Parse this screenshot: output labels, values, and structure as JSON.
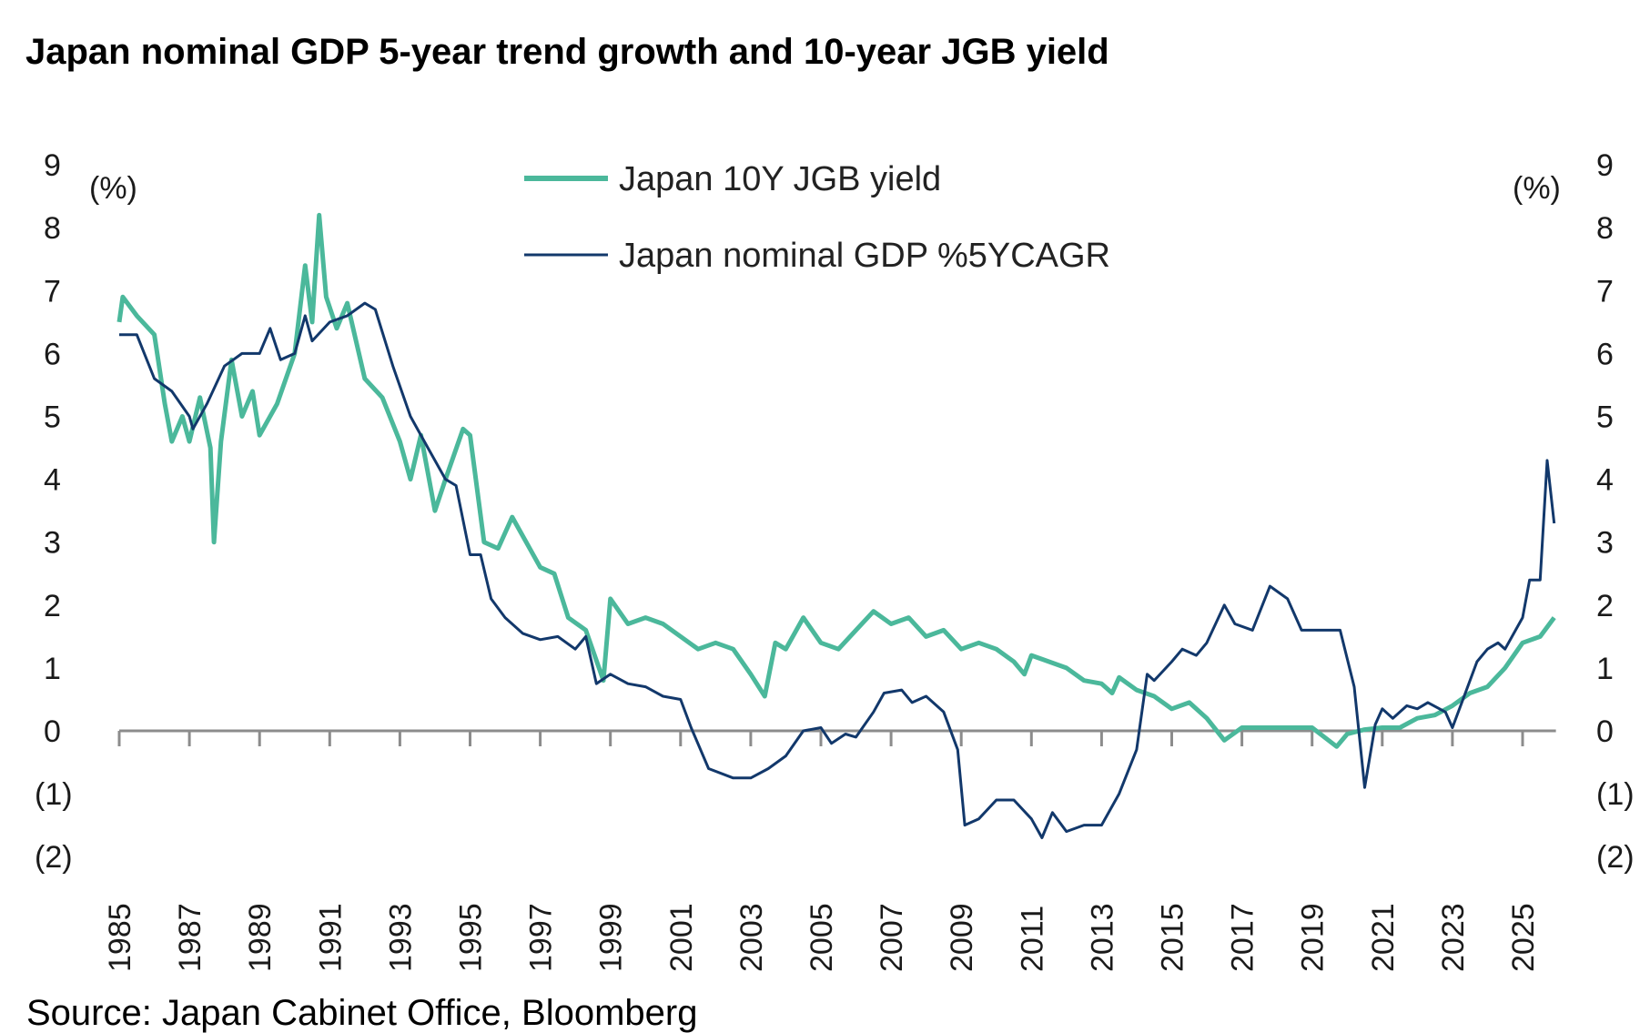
{
  "chart_data": {
    "type": "line",
    "title": "Japan nominal GDP 5-year trend growth and 10-year JGB yield",
    "source": "Source: Japan Cabinet Office, Bloomberg",
    "ylabel_left": "(%)",
    "ylabel_right": "(%)",
    "ylim": [
      -2,
      9
    ],
    "yticks": [
      9,
      8,
      7,
      6,
      5,
      4,
      3,
      2,
      1,
      0,
      -1,
      -2
    ],
    "ytick_labels": [
      "9",
      "8",
      "7",
      "6",
      "5",
      "4",
      "3",
      "2",
      "1",
      "0",
      "(1)",
      "(2)"
    ],
    "xlim": [
      1985,
      2026
    ],
    "xticks": [
      "1985",
      "1987",
      "1989",
      "1991",
      "1993",
      "1995",
      "1997",
      "1999",
      "2001",
      "2003",
      "2005",
      "2007",
      "2009",
      "2011",
      "2013",
      "2015",
      "2017",
      "2019",
      "2021",
      "2023",
      "2025"
    ],
    "legend_position": "top-center",
    "grid": false,
    "series": [
      {
        "name": "Japan 10Y JGB yield",
        "color": "#4bb89b",
        "points": [
          [
            1985.0,
            6.5
          ],
          [
            1985.1,
            6.9
          ],
          [
            1985.5,
            6.6
          ],
          [
            1986.0,
            6.3
          ],
          [
            1986.3,
            5.2
          ],
          [
            1986.5,
            4.6
          ],
          [
            1986.8,
            5.0
          ],
          [
            1987.0,
            4.6
          ],
          [
            1987.3,
            5.3
          ],
          [
            1987.6,
            4.5
          ],
          [
            1987.7,
            3.0
          ],
          [
            1987.9,
            4.6
          ],
          [
            1988.2,
            5.9
          ],
          [
            1988.5,
            5.0
          ],
          [
            1988.8,
            5.4
          ],
          [
            1989.0,
            4.7
          ],
          [
            1989.5,
            5.2
          ],
          [
            1990.0,
            6.0
          ],
          [
            1990.3,
            7.4
          ],
          [
            1990.5,
            6.5
          ],
          [
            1990.7,
            8.2
          ],
          [
            1990.9,
            6.9
          ],
          [
            1991.2,
            6.4
          ],
          [
            1991.5,
            6.8
          ],
          [
            1992.0,
            5.6
          ],
          [
            1992.5,
            5.3
          ],
          [
            1993.0,
            4.6
          ],
          [
            1993.3,
            4.0
          ],
          [
            1993.6,
            4.7
          ],
          [
            1994.0,
            3.5
          ],
          [
            1994.3,
            4.0
          ],
          [
            1994.8,
            4.8
          ],
          [
            1995.0,
            4.7
          ],
          [
            1995.4,
            3.0
          ],
          [
            1995.8,
            2.9
          ],
          [
            1996.2,
            3.4
          ],
          [
            1996.6,
            3.0
          ],
          [
            1997.0,
            2.6
          ],
          [
            1997.4,
            2.5
          ],
          [
            1997.8,
            1.8
          ],
          [
            1998.3,
            1.6
          ],
          [
            1998.8,
            0.8
          ],
          [
            1999.0,
            2.1
          ],
          [
            1999.5,
            1.7
          ],
          [
            2000.0,
            1.8
          ],
          [
            2000.5,
            1.7
          ],
          [
            2001.0,
            1.5
          ],
          [
            2001.5,
            1.3
          ],
          [
            2002.0,
            1.4
          ],
          [
            2002.5,
            1.3
          ],
          [
            2003.0,
            0.9
          ],
          [
            2003.4,
            0.55
          ],
          [
            2003.7,
            1.4
          ],
          [
            2004.0,
            1.3
          ],
          [
            2004.5,
            1.8
          ],
          [
            2005.0,
            1.4
          ],
          [
            2005.5,
            1.3
          ],
          [
            2006.0,
            1.6
          ],
          [
            2006.5,
            1.9
          ],
          [
            2007.0,
            1.7
          ],
          [
            2007.5,
            1.8
          ],
          [
            2008.0,
            1.5
          ],
          [
            2008.5,
            1.6
          ],
          [
            2009.0,
            1.3
          ],
          [
            2009.5,
            1.4
          ],
          [
            2010.0,
            1.3
          ],
          [
            2010.5,
            1.1
          ],
          [
            2010.8,
            0.9
          ],
          [
            2011.0,
            1.2
          ],
          [
            2011.5,
            1.1
          ],
          [
            2012.0,
            1.0
          ],
          [
            2012.5,
            0.8
          ],
          [
            2013.0,
            0.75
          ],
          [
            2013.3,
            0.6
          ],
          [
            2013.5,
            0.85
          ],
          [
            2014.0,
            0.65
          ],
          [
            2014.5,
            0.55
          ],
          [
            2015.0,
            0.35
          ],
          [
            2015.5,
            0.45
          ],
          [
            2016.0,
            0.2
          ],
          [
            2016.5,
            -0.15
          ],
          [
            2017.0,
            0.05
          ],
          [
            2018.0,
            0.05
          ],
          [
            2019.0,
            0.05
          ],
          [
            2019.7,
            -0.25
          ],
          [
            2020.0,
            -0.05
          ],
          [
            2020.5,
            0.02
          ],
          [
            2021.0,
            0.05
          ],
          [
            2021.5,
            0.05
          ],
          [
            2022.0,
            0.2
          ],
          [
            2022.5,
            0.25
          ],
          [
            2023.0,
            0.4
          ],
          [
            2023.5,
            0.6
          ],
          [
            2024.0,
            0.7
          ],
          [
            2024.5,
            1.0
          ],
          [
            2025.0,
            1.4
          ],
          [
            2025.5,
            1.5
          ],
          [
            2025.9,
            1.8
          ]
        ]
      },
      {
        "name": "Japan nominal GDP %5YCAGR",
        "color": "#12386b",
        "points": [
          [
            1985.0,
            6.3
          ],
          [
            1985.5,
            6.3
          ],
          [
            1986.0,
            5.6
          ],
          [
            1986.5,
            5.4
          ],
          [
            1987.0,
            5.0
          ],
          [
            1987.1,
            4.8
          ],
          [
            1987.5,
            5.2
          ],
          [
            1988.0,
            5.8
          ],
          [
            1988.5,
            6.0
          ],
          [
            1989.0,
            6.0
          ],
          [
            1989.3,
            6.4
          ],
          [
            1989.6,
            5.9
          ],
          [
            1990.0,
            6.0
          ],
          [
            1990.3,
            6.6
          ],
          [
            1990.5,
            6.2
          ],
          [
            1991.0,
            6.5
          ],
          [
            1991.5,
            6.6
          ],
          [
            1992.0,
            6.8
          ],
          [
            1992.3,
            6.7
          ],
          [
            1992.8,
            5.8
          ],
          [
            1993.3,
            5.0
          ],
          [
            1993.8,
            4.5
          ],
          [
            1994.3,
            4.0
          ],
          [
            1994.6,
            3.9
          ],
          [
            1995.0,
            2.8
          ],
          [
            1995.3,
            2.8
          ],
          [
            1995.6,
            2.1
          ],
          [
            1996.0,
            1.8
          ],
          [
            1996.5,
            1.55
          ],
          [
            1997.0,
            1.45
          ],
          [
            1997.5,
            1.5
          ],
          [
            1998.0,
            1.3
          ],
          [
            1998.3,
            1.5
          ],
          [
            1998.6,
            0.75
          ],
          [
            1999.0,
            0.9
          ],
          [
            1999.5,
            0.75
          ],
          [
            2000.0,
            0.7
          ],
          [
            2000.5,
            0.55
          ],
          [
            2001.0,
            0.5
          ],
          [
            2001.3,
            0.05
          ],
          [
            2001.8,
            -0.6
          ],
          [
            2002.5,
            -0.75
          ],
          [
            2003.0,
            -0.75
          ],
          [
            2003.5,
            -0.6
          ],
          [
            2004.0,
            -0.4
          ],
          [
            2004.5,
            0.0
          ],
          [
            2005.0,
            0.05
          ],
          [
            2005.3,
            -0.2
          ],
          [
            2005.7,
            -0.05
          ],
          [
            2006.0,
            -0.1
          ],
          [
            2006.5,
            0.3
          ],
          [
            2006.8,
            0.6
          ],
          [
            2007.3,
            0.65
          ],
          [
            2007.6,
            0.45
          ],
          [
            2008.0,
            0.55
          ],
          [
            2008.5,
            0.3
          ],
          [
            2008.9,
            -0.3
          ],
          [
            2009.1,
            -1.5
          ],
          [
            2009.5,
            -1.4
          ],
          [
            2010.0,
            -1.1
          ],
          [
            2010.5,
            -1.1
          ],
          [
            2011.0,
            -1.4
          ],
          [
            2011.3,
            -1.7
          ],
          [
            2011.6,
            -1.3
          ],
          [
            2012.0,
            -1.6
          ],
          [
            2012.5,
            -1.5
          ],
          [
            2013.0,
            -1.5
          ],
          [
            2013.5,
            -1.0
          ],
          [
            2014.0,
            -0.3
          ],
          [
            2014.3,
            0.9
          ],
          [
            2014.5,
            0.8
          ],
          [
            2015.0,
            1.1
          ],
          [
            2015.3,
            1.3
          ],
          [
            2015.7,
            1.2
          ],
          [
            2016.0,
            1.4
          ],
          [
            2016.5,
            2.0
          ],
          [
            2016.8,
            1.7
          ],
          [
            2017.3,
            1.6
          ],
          [
            2017.8,
            2.3
          ],
          [
            2018.3,
            2.1
          ],
          [
            2018.7,
            1.6
          ],
          [
            2019.5,
            1.6
          ],
          [
            2019.8,
            1.6
          ],
          [
            2020.2,
            0.7
          ],
          [
            2020.5,
            -0.9
          ],
          [
            2020.8,
            0.1
          ],
          [
            2021.0,
            0.35
          ],
          [
            2021.3,
            0.2
          ],
          [
            2021.7,
            0.4
          ],
          [
            2022.0,
            0.35
          ],
          [
            2022.3,
            0.45
          ],
          [
            2022.8,
            0.3
          ],
          [
            2023.0,
            0.05
          ],
          [
            2023.3,
            0.5
          ],
          [
            2023.7,
            1.1
          ],
          [
            2024.0,
            1.3
          ],
          [
            2024.3,
            1.4
          ],
          [
            2024.5,
            1.3
          ],
          [
            2024.8,
            1.6
          ],
          [
            2025.0,
            1.8
          ],
          [
            2025.2,
            2.4
          ],
          [
            2025.5,
            2.4
          ],
          [
            2025.7,
            4.3
          ],
          [
            2025.9,
            3.3
          ]
        ]
      }
    ]
  }
}
